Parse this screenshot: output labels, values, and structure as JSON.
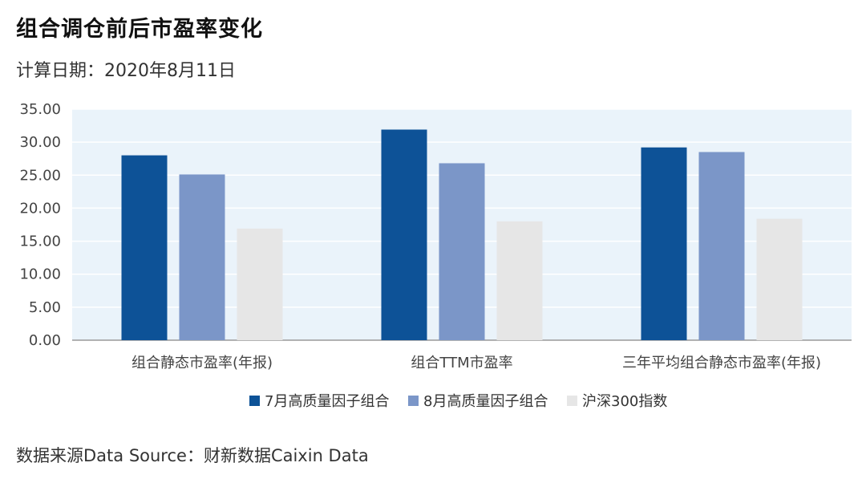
{
  "header": {
    "title": "组合调仓前后市盈率变化",
    "subtitle": "计算日期：2020年8月11日"
  },
  "footer": {
    "source": "数据来源Data Source：财新数据Caixin Data"
  },
  "chart_data": {
    "type": "bar",
    "categories": [
      "组合静态市盈率(年报)",
      "组合TTM市盈率",
      "三年平均组合静态市盈率(年报)"
    ],
    "series": [
      {
        "name": "7月高质量因子组合",
        "color": "#0d5297",
        "values": [
          28.0,
          31.9,
          29.2
        ]
      },
      {
        "name": "8月高质量因子组合",
        "color": "#7b96c8",
        "values": [
          25.1,
          26.8,
          28.5
        ]
      },
      {
        "name": "沪深300指数",
        "color": "#e6e6e6",
        "values": [
          16.9,
          18.0,
          18.4
        ]
      }
    ],
    "ylim": [
      0,
      35
    ],
    "yticks": [
      "0.00",
      "5.00",
      "10.00",
      "15.00",
      "20.00",
      "25.00",
      "30.00",
      "35.00"
    ],
    "grid": true,
    "legend": "bottom-center",
    "plot_background": "#eaf3fa"
  }
}
